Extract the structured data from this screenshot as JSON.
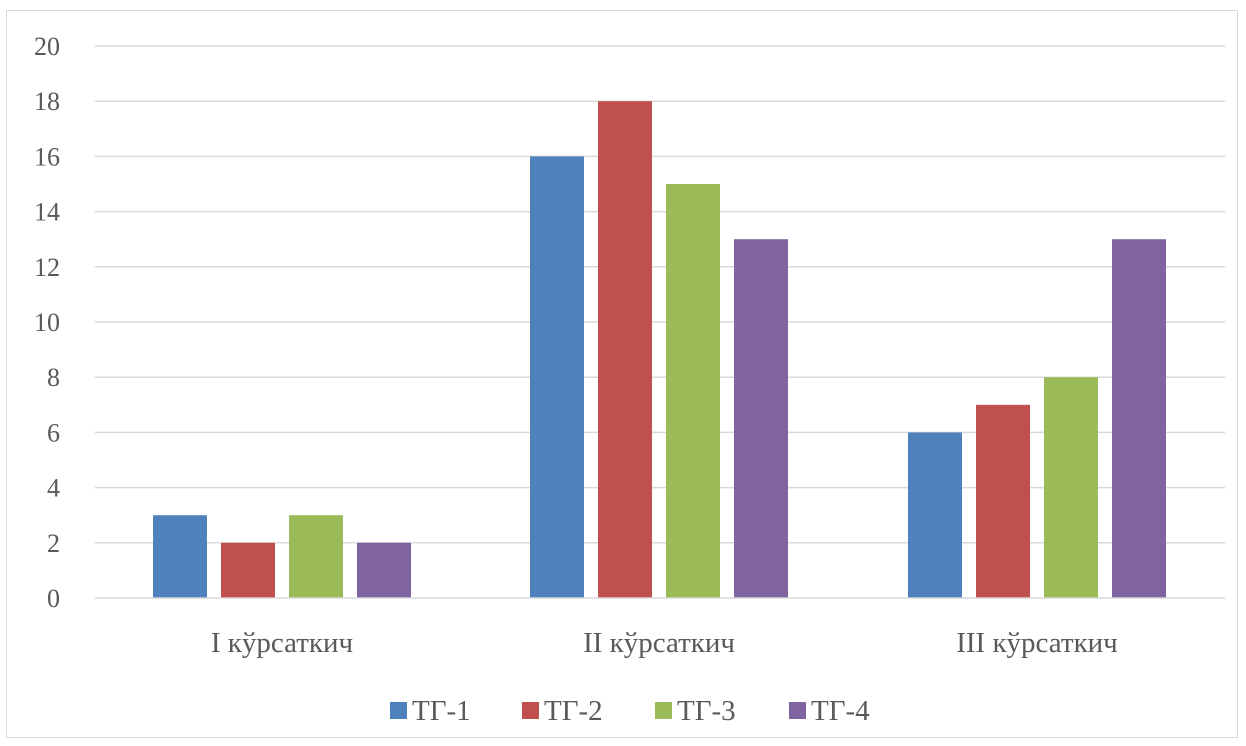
{
  "chart_data": {
    "type": "bar",
    "categories": [
      "I кўрсаткич",
      "II кўрсаткич",
      "III кўрсаткич"
    ],
    "series": [
      {
        "name": "ТГ-1",
        "color": "#4f81bd",
        "values": [
          3,
          16,
          6
        ]
      },
      {
        "name": "ТГ-2",
        "color": "#c0504d",
        "values": [
          2,
          18,
          7
        ]
      },
      {
        "name": "ТГ-3",
        "color": "#9bbb59",
        "values": [
          3,
          15,
          8
        ]
      },
      {
        "name": "ТГ-4",
        "color": "#8064a2",
        "values": [
          2,
          13,
          13
        ]
      }
    ],
    "ylim": [
      0,
      20
    ],
    "yticks": [
      0,
      2,
      4,
      6,
      8,
      10,
      12,
      14,
      16,
      18,
      20
    ],
    "ytick_labels": [
      "0",
      "2",
      "4",
      "6",
      "8",
      "10",
      "12",
      "14",
      "16",
      "18",
      "20"
    ],
    "grid": true,
    "gridline_color": "#d9d9d9",
    "legend_position": "bottom"
  }
}
